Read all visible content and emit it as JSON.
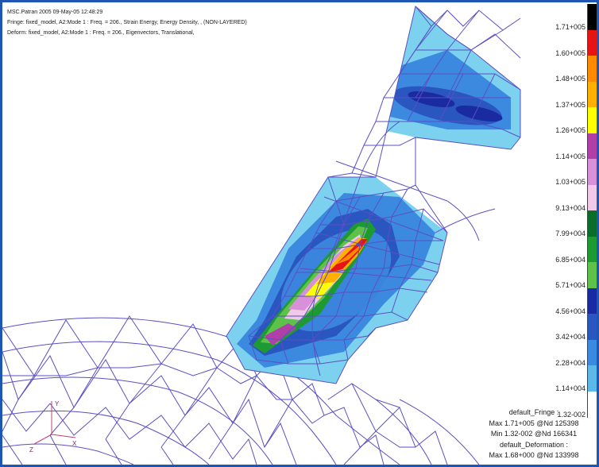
{
  "header": {
    "line1": "MSC.Patran 2005 09-May-05 12:48:29",
    "line2": "Fringe: fixed_model, A2:Mode 1 : Freq. = 206., Strain Energy, Energy Density, , (NON-LAYERED)",
    "line3": "Deform: fixed_model, A2:Mode 1 : Freq. = 206., Eigenvectors, Translational,"
  },
  "legend": {
    "labels": [
      "1.71+005",
      "1.60+005",
      "1.48+005",
      "1.37+005",
      "1.26+005",
      "1.14+005",
      "1.03+005",
      "9.13+004",
      "7.99+004",
      "6.85+004",
      "5.71+004",
      "4.56+004",
      "3.42+004",
      "2.28+004",
      "1.14+004",
      "1.32-002"
    ],
    "colors": [
      "#000000",
      "#e81414",
      "#ff8a00",
      "#ffb000",
      "#ffff00",
      "#b040a8",
      "#d890d8",
      "#f0c8e8",
      "#0a6e2a",
      "#1e9a32",
      "#5ec24a",
      "#1a2aa0",
      "#2a56c0",
      "#3c8ae0",
      "#5cb8e8",
      "#ffffff"
    ]
  },
  "stats": {
    "fringe_title": "default_Fringe :",
    "fringe_max": "Max 1.71+005 @Nd 125398",
    "fringe_min": "Min 1.32-002 @Nd 166341",
    "deform_title": "default_Deformation :",
    "deform_max": "Max 1.68+000 @Nd 133998"
  },
  "triad": {
    "x_label": "X",
    "y_label": "Y",
    "z_label": "Z"
  }
}
